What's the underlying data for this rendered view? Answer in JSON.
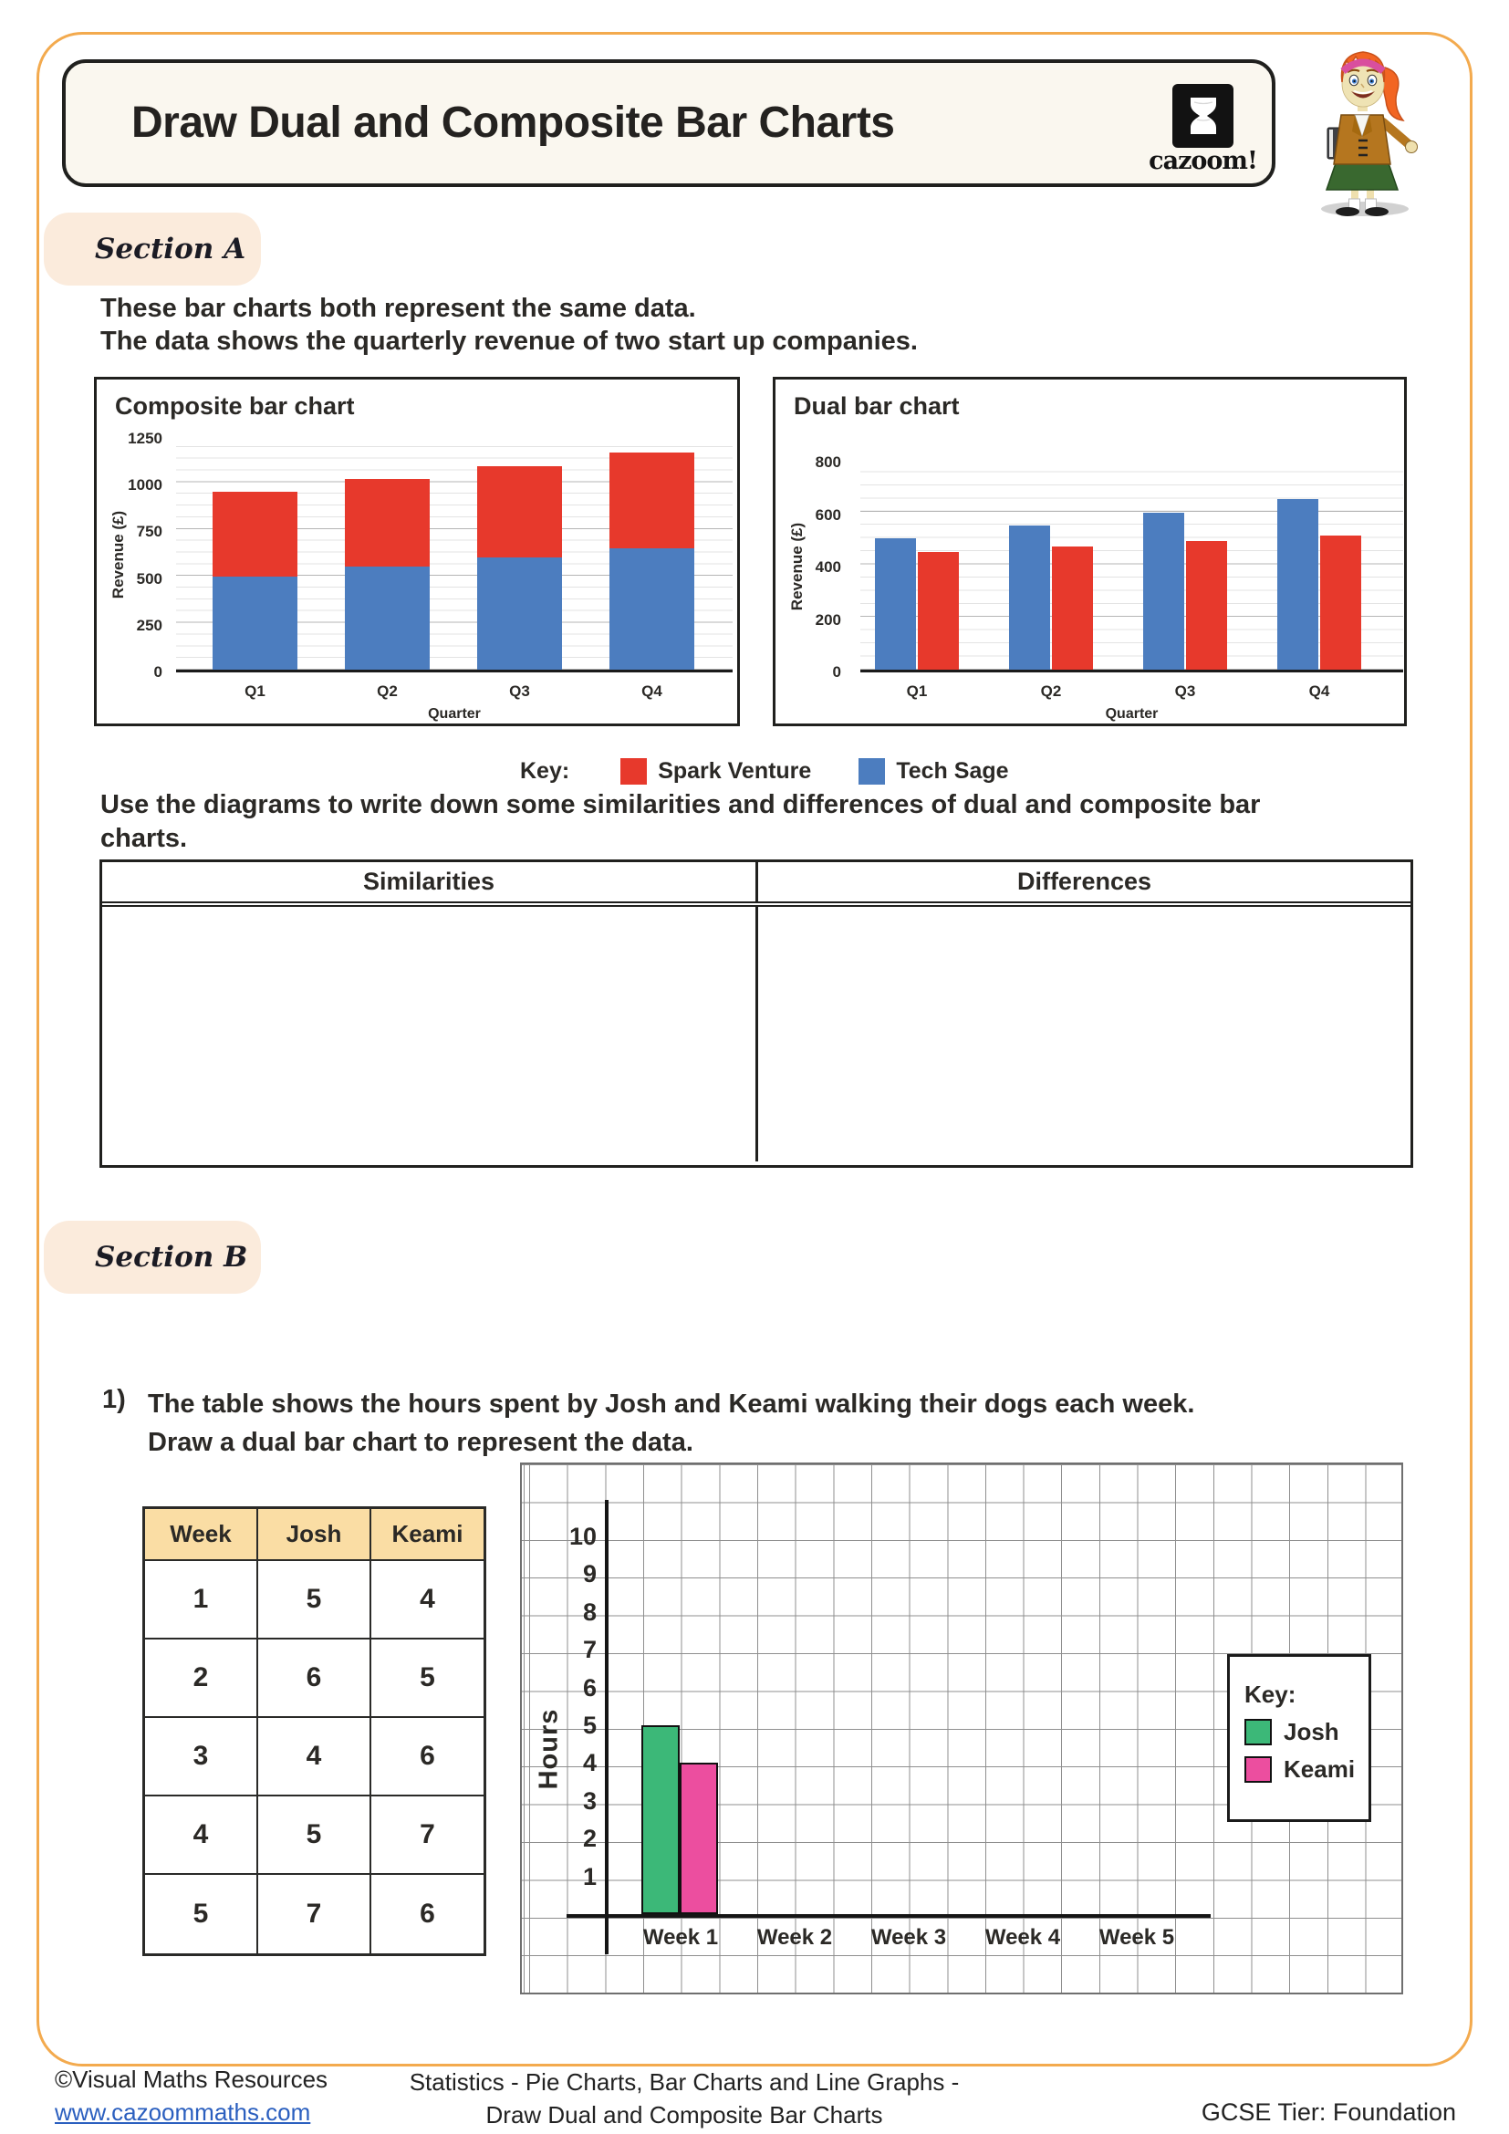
{
  "page": {
    "title": "Draw Dual and Composite Bar Charts",
    "brand": "cazoom!"
  },
  "section_a": {
    "label": "Section A",
    "intro": "These bar charts both represent the same data.\nThe data shows the quarterly revenue of two start up companies.",
    "key_label": "Key:",
    "legend": [
      {
        "name": "Spark Venture",
        "color": "#E7392C"
      },
      {
        "name": "Tech Sage",
        "color": "#4C7DBF"
      }
    ],
    "prompt": "Use the diagrams to write down some similarities and differences of dual and composite bar\ncharts.",
    "comparison_table": {
      "headers": [
        "Similarities",
        "Differences"
      ]
    }
  },
  "section_b": {
    "label": "Section B",
    "question_number": "1)",
    "question": "The table shows the hours spent by Josh and Keami walking their dogs each week.\nDraw a dual bar chart to represent the data.",
    "data_table": {
      "headers": [
        "Week",
        "Josh",
        "Keami"
      ],
      "rows": [
        [
          "1",
          "5",
          "4"
        ],
        [
          "2",
          "6",
          "5"
        ],
        [
          "3",
          "4",
          "6"
        ],
        [
          "4",
          "5",
          "7"
        ],
        [
          "5",
          "7",
          "6"
        ]
      ]
    },
    "grid_chart": {
      "ylabel": "Hours",
      "yticks": [
        1,
        2,
        3,
        4,
        5,
        6,
        7,
        8,
        9,
        10
      ],
      "categories": [
        "Week 1",
        "Week 2",
        "Week 3",
        "Week 4",
        "Week 5"
      ],
      "key_label": "Key:",
      "legend": [
        {
          "name": "Josh",
          "color": "#3CB878"
        },
        {
          "name": "Keami",
          "color": "#EC4E9F"
        }
      ],
      "drawn_bars": [
        {
          "category": "Week 1",
          "series": "Josh",
          "value": 5
        },
        {
          "category": "Week 1",
          "series": "Keami",
          "value": 4
        }
      ]
    }
  },
  "chart_data": [
    {
      "id": "composite",
      "type": "bar",
      "variant": "stacked",
      "title": "Composite bar chart",
      "categories": [
        "Q1",
        "Q2",
        "Q3",
        "Q4"
      ],
      "series": [
        {
          "name": "Tech Sage",
          "color": "#4C7DBF",
          "values": [
            500,
            550,
            600,
            650
          ]
        },
        {
          "name": "Spark Venture",
          "color": "#E7392C",
          "values": [
            450,
            470,
            490,
            510
          ]
        }
      ],
      "xlabel": "Quarter",
      "ylabel": "Revenue (£)",
      "ylim": [
        0,
        1250
      ],
      "yticks": [
        0,
        250,
        500,
        750,
        1000,
        1250
      ],
      "grid": "minor every 50, major every 250"
    },
    {
      "id": "dual",
      "type": "bar",
      "variant": "grouped",
      "title": "Dual bar chart",
      "categories": [
        "Q1",
        "Q2",
        "Q3",
        "Q4"
      ],
      "series": [
        {
          "name": "Tech Sage",
          "color": "#4C7DBF",
          "values": [
            500,
            550,
            600,
            650
          ]
        },
        {
          "name": "Spark Venture",
          "color": "#E7392C",
          "values": [
            450,
            470,
            490,
            510
          ]
        }
      ],
      "xlabel": "Quarter",
      "ylabel": "Revenue (£)",
      "ylim": [
        0,
        800
      ],
      "yticks": [
        0,
        200,
        400,
        600,
        800
      ],
      "grid": "minor every 50, major every 200"
    },
    {
      "id": "practice-grid",
      "type": "bar",
      "variant": "grouped",
      "title": "",
      "categories": [
        "Week 1",
        "Week 2",
        "Week 3",
        "Week 4",
        "Week 5"
      ],
      "series": [
        {
          "name": "Josh",
          "color": "#3CB878",
          "values": [
            5,
            null,
            null,
            null,
            null
          ]
        },
        {
          "name": "Keami",
          "color": "#EC4E9F",
          "values": [
            4,
            null,
            null,
            null,
            null
          ]
        }
      ],
      "xlabel": "",
      "ylabel": "Hours",
      "ylim": [
        0,
        10
      ],
      "yticks": [
        1,
        2,
        3,
        4,
        5,
        6,
        7,
        8,
        9,
        10
      ]
    }
  ],
  "footer": {
    "copyright": "©Visual Maths Resources",
    "website": "www.cazoommaths.com",
    "topic_line1": "Statistics - Pie Charts, Bar Charts and Line Graphs -",
    "topic_line2": "Draw Dual and Composite Bar Charts",
    "tier": "GCSE Tier: Foundation"
  }
}
